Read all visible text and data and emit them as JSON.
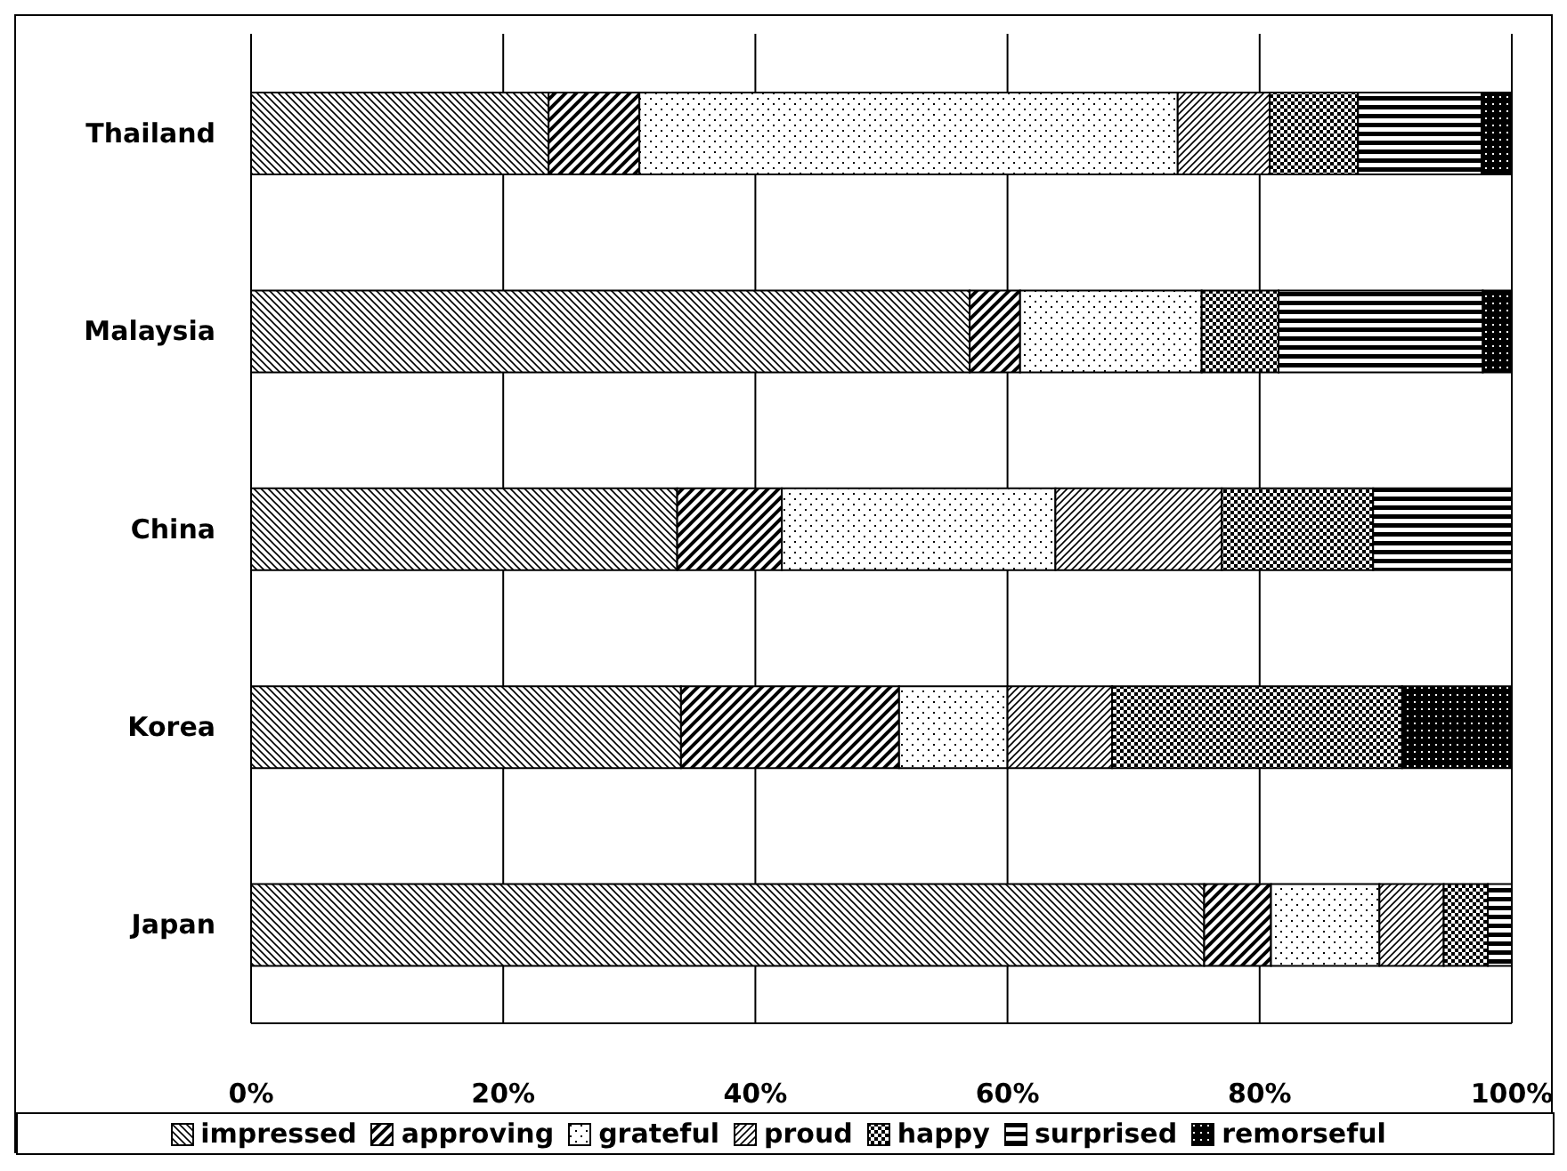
{
  "chart_data": {
    "type": "bar",
    "orientation": "horizontal",
    "stacked": true,
    "categories": [
      "Thailand",
      "Malaysia",
      "China",
      "Korea",
      "Japan"
    ],
    "series": [
      {
        "name": "impressed",
        "color": "#000000",
        "values": [
          23.6,
          57.0,
          33.8,
          34.1,
          75.6
        ]
      },
      {
        "name": "approving",
        "color": "#000000",
        "values": [
          7.2,
          4.0,
          8.3,
          17.3,
          5.3
        ]
      },
      {
        "name": "grateful",
        "color": "#000000",
        "values": [
          42.7,
          14.4,
          21.7,
          8.6,
          8.6
        ]
      },
      {
        "name": "proud",
        "color": "#000000",
        "values": [
          7.3,
          0,
          13.2,
          8.3,
          5.1
        ]
      },
      {
        "name": "happy",
        "color": "#000000",
        "values": [
          7.0,
          6.1,
          12.0,
          23.0,
          3.5
        ]
      },
      {
        "name": "surprised",
        "color": "#000000",
        "values": [
          9.8,
          16.2,
          11.0,
          0,
          1.9
        ]
      },
      {
        "name": "remorseful",
        "color": "#000000",
        "values": [
          2.4,
          2.3,
          0,
          8.7,
          0
        ]
      }
    ],
    "xlim": [
      0,
      100
    ],
    "xticks": [
      {
        "value": 0,
        "label": "0%"
      },
      {
        "value": 20,
        "label": "20%"
      },
      {
        "value": 40,
        "label": "40%"
      },
      {
        "value": 60,
        "label": "60%"
      },
      {
        "value": 80,
        "label": "80%"
      },
      {
        "value": 100,
        "label": "100%"
      }
    ],
    "grid": "x",
    "legend": "bottom"
  }
}
